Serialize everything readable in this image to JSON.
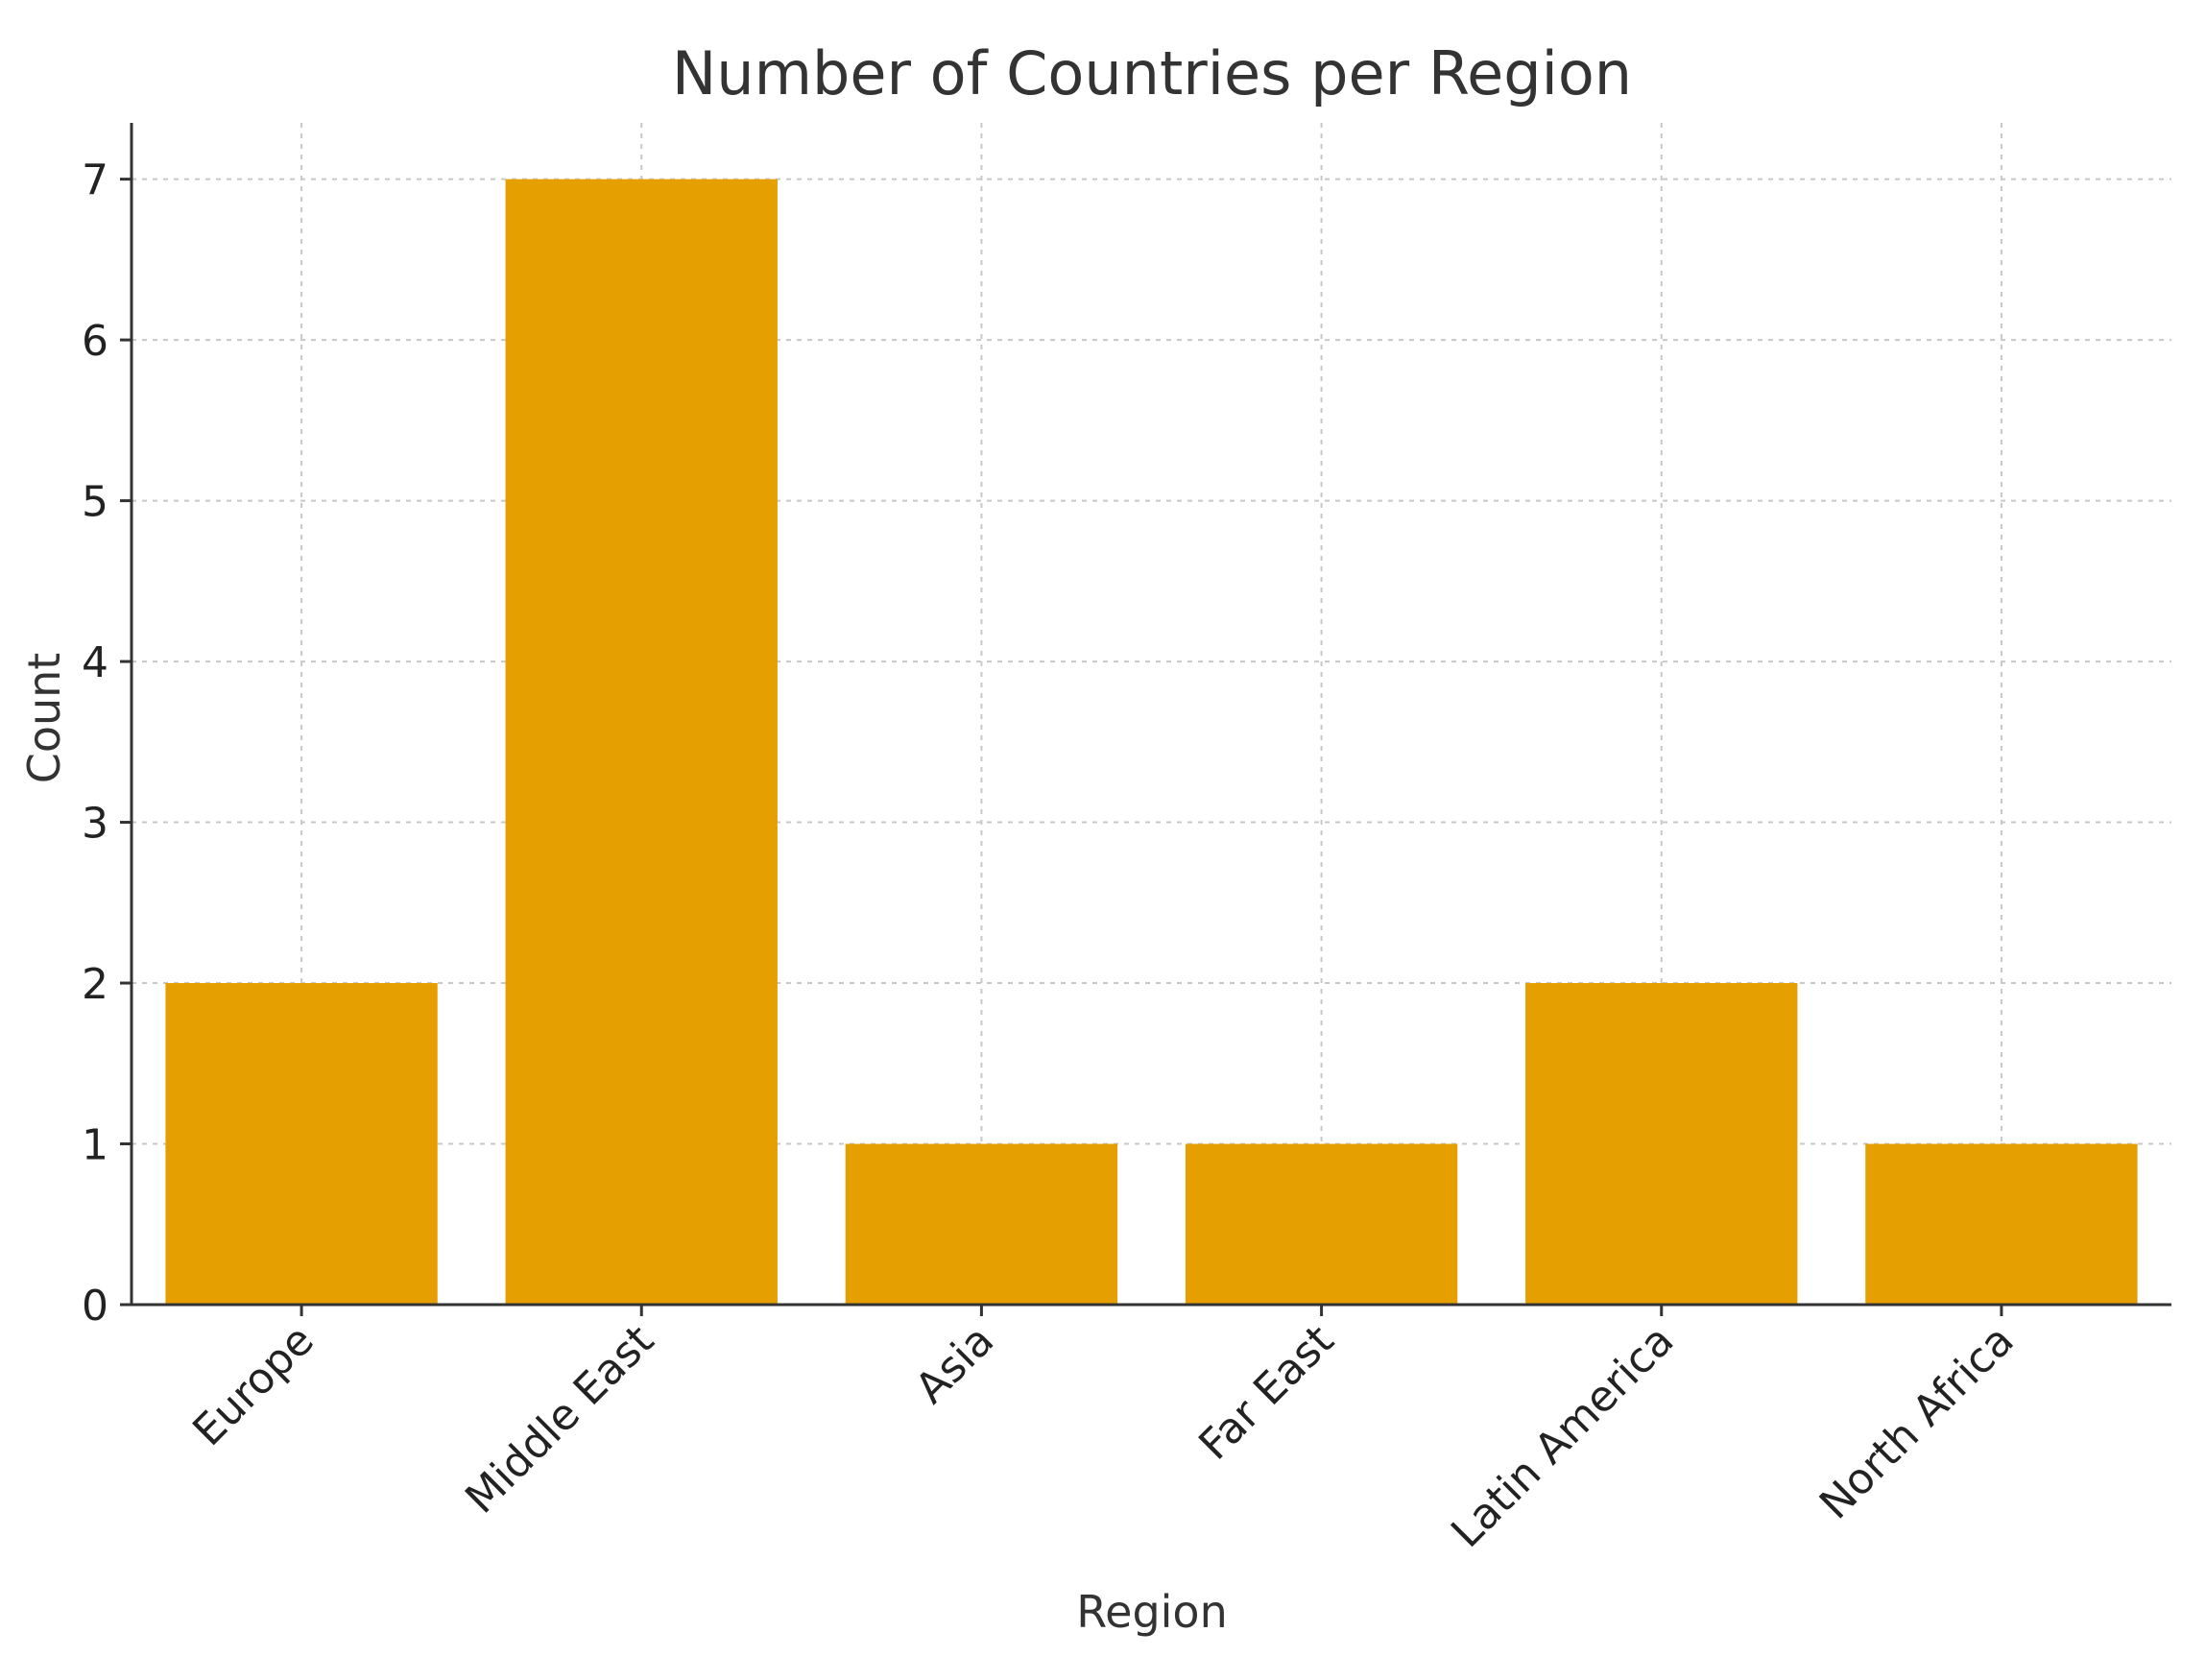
{
  "chart_data": {
    "type": "bar",
    "title": "Number of Countries per Region",
    "xlabel": "Region",
    "ylabel": "Count",
    "categories": [
      "Europe",
      "Middle East",
      "Asia",
      "Far East",
      "Latin America",
      "North Africa"
    ],
    "values": [
      2,
      7,
      1,
      1,
      2,
      1
    ],
    "yticks": [
      0,
      1,
      2,
      3,
      4,
      5,
      6,
      7
    ],
    "ylim": [
      0,
      7.35
    ],
    "grid": true,
    "legend": "none",
    "bar_color": "#e69f00"
  }
}
